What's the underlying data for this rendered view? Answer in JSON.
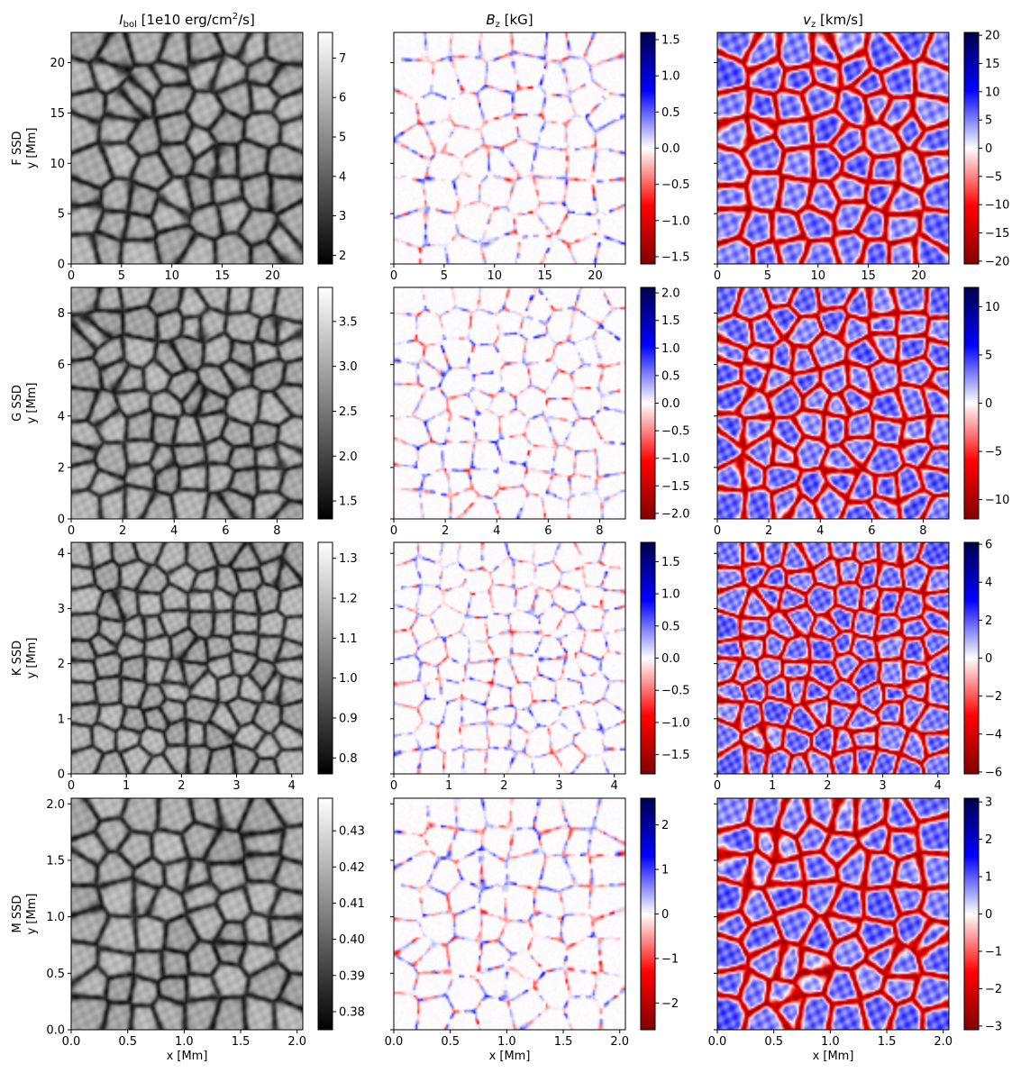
{
  "figure": {
    "col_titles": [
      {
        "main": "I",
        "sub": "bol",
        "rest": " [1e10 erg/cm",
        "sup": "2",
        "tail": "/s]"
      },
      {
        "main": "B",
        "sub": "z",
        "rest": " [kG]",
        "sup": "",
        "tail": ""
      },
      {
        "main": "v",
        "sub": "z",
        "rest": " [km/s]",
        "sup": "",
        "tail": ""
      }
    ],
    "row_labels": [
      "F SSD",
      "G SSD",
      "K SSD",
      "M SSD"
    ],
    "ylabel": "y [Mm]",
    "xlabel": "x [Mm]"
  },
  "chart_data": [
    {
      "type": "heatmap",
      "row": "F SSD",
      "quantity": "I_bol",
      "colormap": "gray",
      "x_range": [
        0,
        23
      ],
      "y_range": [
        0,
        23
      ],
      "xticks": [
        "0",
        "5",
        "10",
        "15",
        "20"
      ],
      "yticks": [
        "0",
        "5",
        "10",
        "15",
        "20"
      ],
      "xtick_values": [
        0,
        5,
        10,
        15,
        20
      ],
      "ytick_values": [
        0,
        5,
        10,
        15,
        20
      ],
      "cbar_range": [
        1.78,
        7.65
      ],
      "cbar_ticks": [
        "2",
        "3",
        "4",
        "5",
        "6",
        "7"
      ],
      "cbar_tick_values": [
        2,
        3,
        4,
        5,
        6,
        7
      ],
      "cell_scale": 1.1
    },
    {
      "type": "heatmap",
      "row": "F SSD",
      "quantity": "B_z",
      "colormap": "seismic_r",
      "x_range": [
        0,
        23
      ],
      "y_range": [
        0,
        23
      ],
      "xticks": [
        "0",
        "5",
        "10",
        "15",
        "20"
      ],
      "yticks": [],
      "xtick_values": [
        0,
        5,
        10,
        15,
        20
      ],
      "ytick_values": [
        0,
        5,
        10,
        15,
        20
      ],
      "cbar_range": [
        -1.6,
        1.6
      ],
      "cbar_ticks": [
        "−1.5",
        "−1.0",
        "−0.5",
        "0.0",
        "0.5",
        "1.0",
        "1.5"
      ],
      "cbar_tick_values": [
        -1.5,
        -1.0,
        -0.5,
        0.0,
        0.5,
        1.0,
        1.5
      ],
      "cell_scale": 1.1
    },
    {
      "type": "heatmap",
      "row": "F SSD",
      "quantity": "v_z",
      "colormap": "seismic_r",
      "x_range": [
        0,
        23
      ],
      "y_range": [
        0,
        23
      ],
      "xticks": [
        "0",
        "5",
        "10",
        "15",
        "20"
      ],
      "yticks": [],
      "xtick_values": [
        0,
        5,
        10,
        15,
        20
      ],
      "ytick_values": [
        0,
        5,
        10,
        15,
        20
      ],
      "cbar_range": [
        -20.5,
        20.5
      ],
      "cbar_ticks": [
        "−20",
        "−15",
        "−10",
        "−5",
        "0",
        "5",
        "10",
        "15",
        "20"
      ],
      "cbar_tick_values": [
        -20,
        -15,
        -10,
        -5,
        0,
        5,
        10,
        15,
        20
      ],
      "cell_scale": 1.1
    },
    {
      "type": "heatmap",
      "row": "G SSD",
      "quantity": "I_bol",
      "colormap": "gray",
      "x_range": [
        0,
        9
      ],
      "y_range": [
        0,
        9
      ],
      "xticks": [
        "0",
        "2",
        "4",
        "6",
        "8"
      ],
      "yticks": [
        "0",
        "2",
        "4",
        "6",
        "8"
      ],
      "xtick_values": [
        0,
        2,
        4,
        6,
        8
      ],
      "ytick_values": [
        0,
        2,
        4,
        6,
        8
      ],
      "cbar_range": [
        1.3,
        3.88
      ],
      "cbar_ticks": [
        "1.5",
        "2.0",
        "2.5",
        "3.0",
        "3.5"
      ],
      "cbar_tick_values": [
        1.5,
        2.0,
        2.5,
        3.0,
        3.5
      ],
      "cell_scale": 1.3
    },
    {
      "type": "heatmap",
      "row": "G SSD",
      "quantity": "B_z",
      "colormap": "seismic_r",
      "x_range": [
        0,
        9
      ],
      "y_range": [
        0,
        9
      ],
      "xticks": [
        "0",
        "2",
        "4",
        "6",
        "8"
      ],
      "yticks": [],
      "xtick_values": [
        0,
        2,
        4,
        6,
        8
      ],
      "ytick_values": [
        0,
        2,
        4,
        6,
        8
      ],
      "cbar_range": [
        -2.1,
        2.1
      ],
      "cbar_ticks": [
        "−2.0",
        "−1.5",
        "−1.0",
        "−0.5",
        "0.0",
        "0.5",
        "1.0",
        "1.5",
        "2.0"
      ],
      "cbar_tick_values": [
        -2.0,
        -1.5,
        -1.0,
        -0.5,
        0.0,
        0.5,
        1.0,
        1.5,
        2.0
      ],
      "cell_scale": 1.3
    },
    {
      "type": "heatmap",
      "row": "G SSD",
      "quantity": "v_z",
      "colormap": "seismic_r",
      "x_range": [
        0,
        9
      ],
      "y_range": [
        0,
        9
      ],
      "xticks": [
        "0",
        "2",
        "4",
        "6",
        "8"
      ],
      "yticks": [],
      "xtick_values": [
        0,
        2,
        4,
        6,
        8
      ],
      "ytick_values": [
        0,
        2,
        4,
        6,
        8
      ],
      "cbar_range": [
        -12,
        12
      ],
      "cbar_ticks": [
        "−10",
        "−5",
        "0",
        "5",
        "10"
      ],
      "cbar_tick_values": [
        -10,
        -5,
        0,
        5,
        10
      ],
      "cell_scale": 1.3
    },
    {
      "type": "heatmap",
      "row": "K SSD",
      "quantity": "I_bol",
      "colormap": "gray",
      "x_range": [
        0,
        4.2
      ],
      "y_range": [
        0,
        4.2
      ],
      "xticks": [
        "0",
        "1",
        "2",
        "3",
        "4"
      ],
      "yticks": [
        "0",
        "1",
        "2",
        "3",
        "4"
      ],
      "xtick_values": [
        0,
        1,
        2,
        3,
        4
      ],
      "ytick_values": [
        0,
        1,
        2,
        3,
        4
      ],
      "cbar_range": [
        0.76,
        1.34
      ],
      "cbar_ticks": [
        "0.8",
        "0.9",
        "1.0",
        "1.1",
        "1.2",
        "1.3"
      ],
      "cbar_tick_values": [
        0.8,
        0.9,
        1.0,
        1.1,
        1.2,
        1.3
      ],
      "cell_scale": 1.5
    },
    {
      "type": "heatmap",
      "row": "K SSD",
      "quantity": "B_z",
      "colormap": "seismic_r",
      "x_range": [
        0,
        4.2
      ],
      "y_range": [
        0,
        4.2
      ],
      "xticks": [
        "0",
        "1",
        "2",
        "3",
        "4"
      ],
      "yticks": [],
      "xtick_values": [
        0,
        1,
        2,
        3,
        4
      ],
      "ytick_values": [
        0,
        1,
        2,
        3,
        4
      ],
      "cbar_range": [
        -1.8,
        1.8
      ],
      "cbar_ticks": [
        "−1.5",
        "−1.0",
        "−0.5",
        "0.0",
        "0.5",
        "1.0",
        "1.5"
      ],
      "cbar_tick_values": [
        -1.5,
        -1.0,
        -0.5,
        0.0,
        0.5,
        1.0,
        1.5
      ],
      "cell_scale": 1.5
    },
    {
      "type": "heatmap",
      "row": "K SSD",
      "quantity": "v_z",
      "colormap": "seismic_r",
      "x_range": [
        0,
        4.2
      ],
      "y_range": [
        0,
        4.2
      ],
      "xticks": [
        "0",
        "1",
        "2",
        "3",
        "4"
      ],
      "yticks": [],
      "xtick_values": [
        0,
        1,
        2,
        3,
        4
      ],
      "ytick_values": [
        0,
        1,
        2,
        3,
        4
      ],
      "cbar_range": [
        -6.1,
        6.1
      ],
      "cbar_ticks": [
        "−6",
        "−4",
        "−2",
        "0",
        "2",
        "4",
        "6"
      ],
      "cbar_tick_values": [
        -6,
        -4,
        -2,
        0,
        2,
        4,
        6
      ],
      "cell_scale": 1.5
    },
    {
      "type": "heatmap",
      "row": "M SSD",
      "quantity": "I_bol",
      "colormap": "gray",
      "x_range": [
        0,
        2.05
      ],
      "y_range": [
        0,
        2.05
      ],
      "xticks": [
        "0.0",
        "0.5",
        "1.0",
        "1.5",
        "2.0"
      ],
      "yticks": [
        "0.0",
        "0.5",
        "1.0",
        "1.5",
        "2.0"
      ],
      "xtick_values": [
        0.0,
        0.5,
        1.0,
        1.5,
        2.0
      ],
      "ytick_values": [
        0.0,
        0.5,
        1.0,
        1.5,
        2.0
      ],
      "cbar_range": [
        0.375,
        0.439
      ],
      "cbar_ticks": [
        "0.38",
        "0.39",
        "0.40",
        "0.41",
        "0.42",
        "0.43"
      ],
      "cbar_tick_values": [
        0.38,
        0.39,
        0.4,
        0.41,
        0.42,
        0.43
      ],
      "cell_scale": 1.2
    },
    {
      "type": "heatmap",
      "row": "M SSD",
      "quantity": "B_z",
      "colormap": "seismic_r",
      "x_range": [
        0,
        2.05
      ],
      "y_range": [
        0,
        2.05
      ],
      "xticks": [
        "0.0",
        "0.5",
        "1.0",
        "1.5",
        "2.0"
      ],
      "yticks": [],
      "xtick_values": [
        0.0,
        0.5,
        1.0,
        1.5,
        2.0
      ],
      "ytick_values": [
        0.0,
        0.5,
        1.0,
        1.5,
        2.0
      ],
      "cbar_range": [
        -2.6,
        2.6
      ],
      "cbar_ticks": [
        "−2",
        "−1",
        "0",
        "1",
        "2"
      ],
      "cbar_tick_values": [
        -2,
        -1,
        0,
        1,
        2
      ],
      "cell_scale": 1.2
    },
    {
      "type": "heatmap",
      "row": "M SSD",
      "quantity": "v_z",
      "colormap": "seismic_r",
      "x_range": [
        0,
        2.05
      ],
      "y_range": [
        0,
        2.05
      ],
      "xticks": [
        "0.0",
        "0.5",
        "1.0",
        "1.5",
        "2.0"
      ],
      "yticks": [],
      "xtick_values": [
        0.0,
        0.5,
        1.0,
        1.5,
        2.0
      ],
      "ytick_values": [
        0.0,
        0.5,
        1.0,
        1.5,
        2.0
      ],
      "cbar_range": [
        -3.1,
        3.1
      ],
      "cbar_ticks": [
        "−3",
        "−2",
        "−1",
        "0",
        "1",
        "2",
        "3"
      ],
      "cbar_tick_values": [
        -3,
        -2,
        -1,
        0,
        1,
        2,
        3
      ],
      "cell_scale": 1.2
    }
  ]
}
